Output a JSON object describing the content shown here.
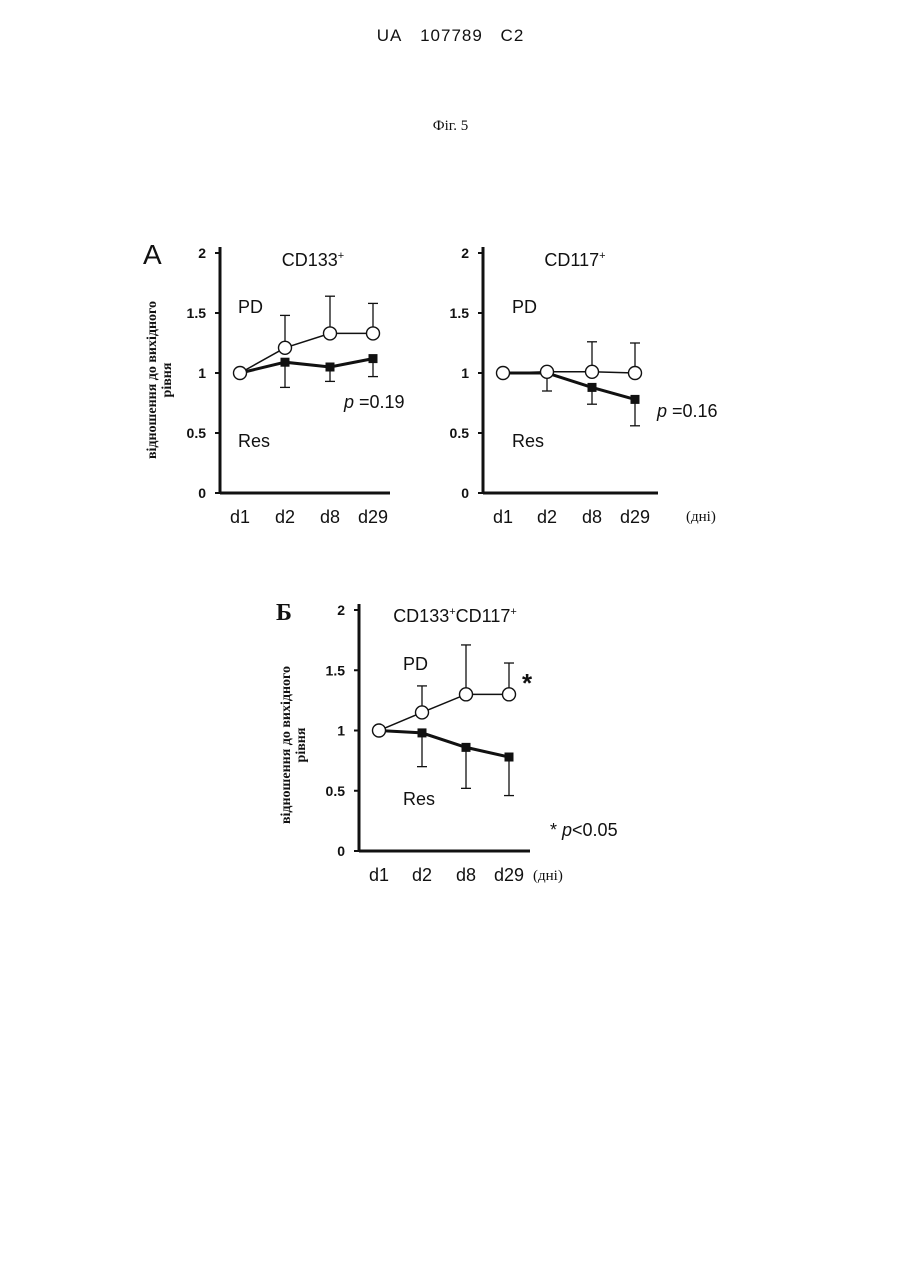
{
  "header": {
    "country": "UA",
    "number": "107789",
    "kind": "C2"
  },
  "figure_label": "Фіг. 5",
  "panels": {
    "a": {
      "letter": "A"
    },
    "b": {
      "letter": "Б"
    }
  },
  "ylabel_line1": "відношення до вихідного",
  "ylabel_line2": "рівня",
  "days_unit": "(дні)",
  "colors": {
    "line": "#111111",
    "open_marker_fill": "#ffffff",
    "closed_marker_fill": "#111111"
  },
  "chart_data": [
    {
      "id": "cd133",
      "type": "line",
      "title_main": "CD133",
      "title_sup": "+",
      "categories": [
        "d1",
        "d2",
        "d8",
        "d29"
      ],
      "ylim": [
        0,
        2
      ],
      "yticks": [
        "0",
        "0.5",
        "1",
        "1.5",
        "2"
      ],
      "series": [
        {
          "name": "PD",
          "marker": "open-circle",
          "values": [
            1.0,
            1.21,
            1.33,
            1.33
          ],
          "err_up": [
            0,
            0.27,
            0.31,
            0.25
          ],
          "err_down": [
            0,
            0,
            0,
            0
          ]
        },
        {
          "name": "Res",
          "marker": "filled-square",
          "values": [
            1.0,
            1.09,
            1.05,
            1.12
          ],
          "err_up": [
            0,
            0,
            0,
            0
          ],
          "err_down": [
            0,
            0.21,
            0.12,
            0.15
          ]
        }
      ],
      "annotation": {
        "italic": "p",
        "text": " =0.19"
      }
    },
    {
      "id": "cd117",
      "type": "line",
      "title_main": "CD117",
      "title_sup": "+",
      "categories": [
        "d1",
        "d2",
        "d8",
        "d29"
      ],
      "ylim": [
        0,
        2
      ],
      "yticks": [
        "0",
        "0.5",
        "1",
        "1.5",
        "2"
      ],
      "series": [
        {
          "name": "PD",
          "marker": "open-circle",
          "values": [
            1.0,
            1.01,
            1.01,
            1.0
          ],
          "err_up": [
            0,
            0,
            0.25,
            0.25
          ],
          "err_down": [
            0,
            0,
            0,
            0
          ]
        },
        {
          "name": "Res",
          "marker": "filled-square",
          "values": [
            1.0,
            1.0,
            0.88,
            0.78
          ],
          "err_up": [
            0,
            0,
            0,
            0
          ],
          "err_down": [
            0,
            0.15,
            0.14,
            0.22
          ]
        }
      ],
      "annotation": {
        "italic": "p",
        "text": " =0.16"
      }
    },
    {
      "id": "cd133cd117",
      "type": "line",
      "title_main": "CD133",
      "title_sup": "+",
      "title_main2": "CD117",
      "title_sup2": "+",
      "categories": [
        "d1",
        "d2",
        "d8",
        "d29"
      ],
      "ylim": [
        0,
        2
      ],
      "yticks": [
        "0",
        "0.5",
        "1",
        "1.5",
        "2"
      ],
      "series": [
        {
          "name": "PD",
          "marker": "open-circle",
          "values": [
            1.0,
            1.15,
            1.3,
            1.3
          ],
          "err_up": [
            0,
            0.22,
            0.41,
            0.26
          ],
          "err_down": [
            0,
            0,
            0,
            0
          ]
        },
        {
          "name": "Res",
          "marker": "filled-square",
          "values": [
            1.0,
            0.98,
            0.86,
            0.78
          ],
          "err_up": [
            0,
            0,
            0,
            0
          ],
          "err_down": [
            0,
            0.28,
            0.34,
            0.32
          ]
        }
      ],
      "star": "*",
      "annotation": {
        "prefix": "* ",
        "italic": "p",
        "text": "<0.05"
      }
    }
  ]
}
